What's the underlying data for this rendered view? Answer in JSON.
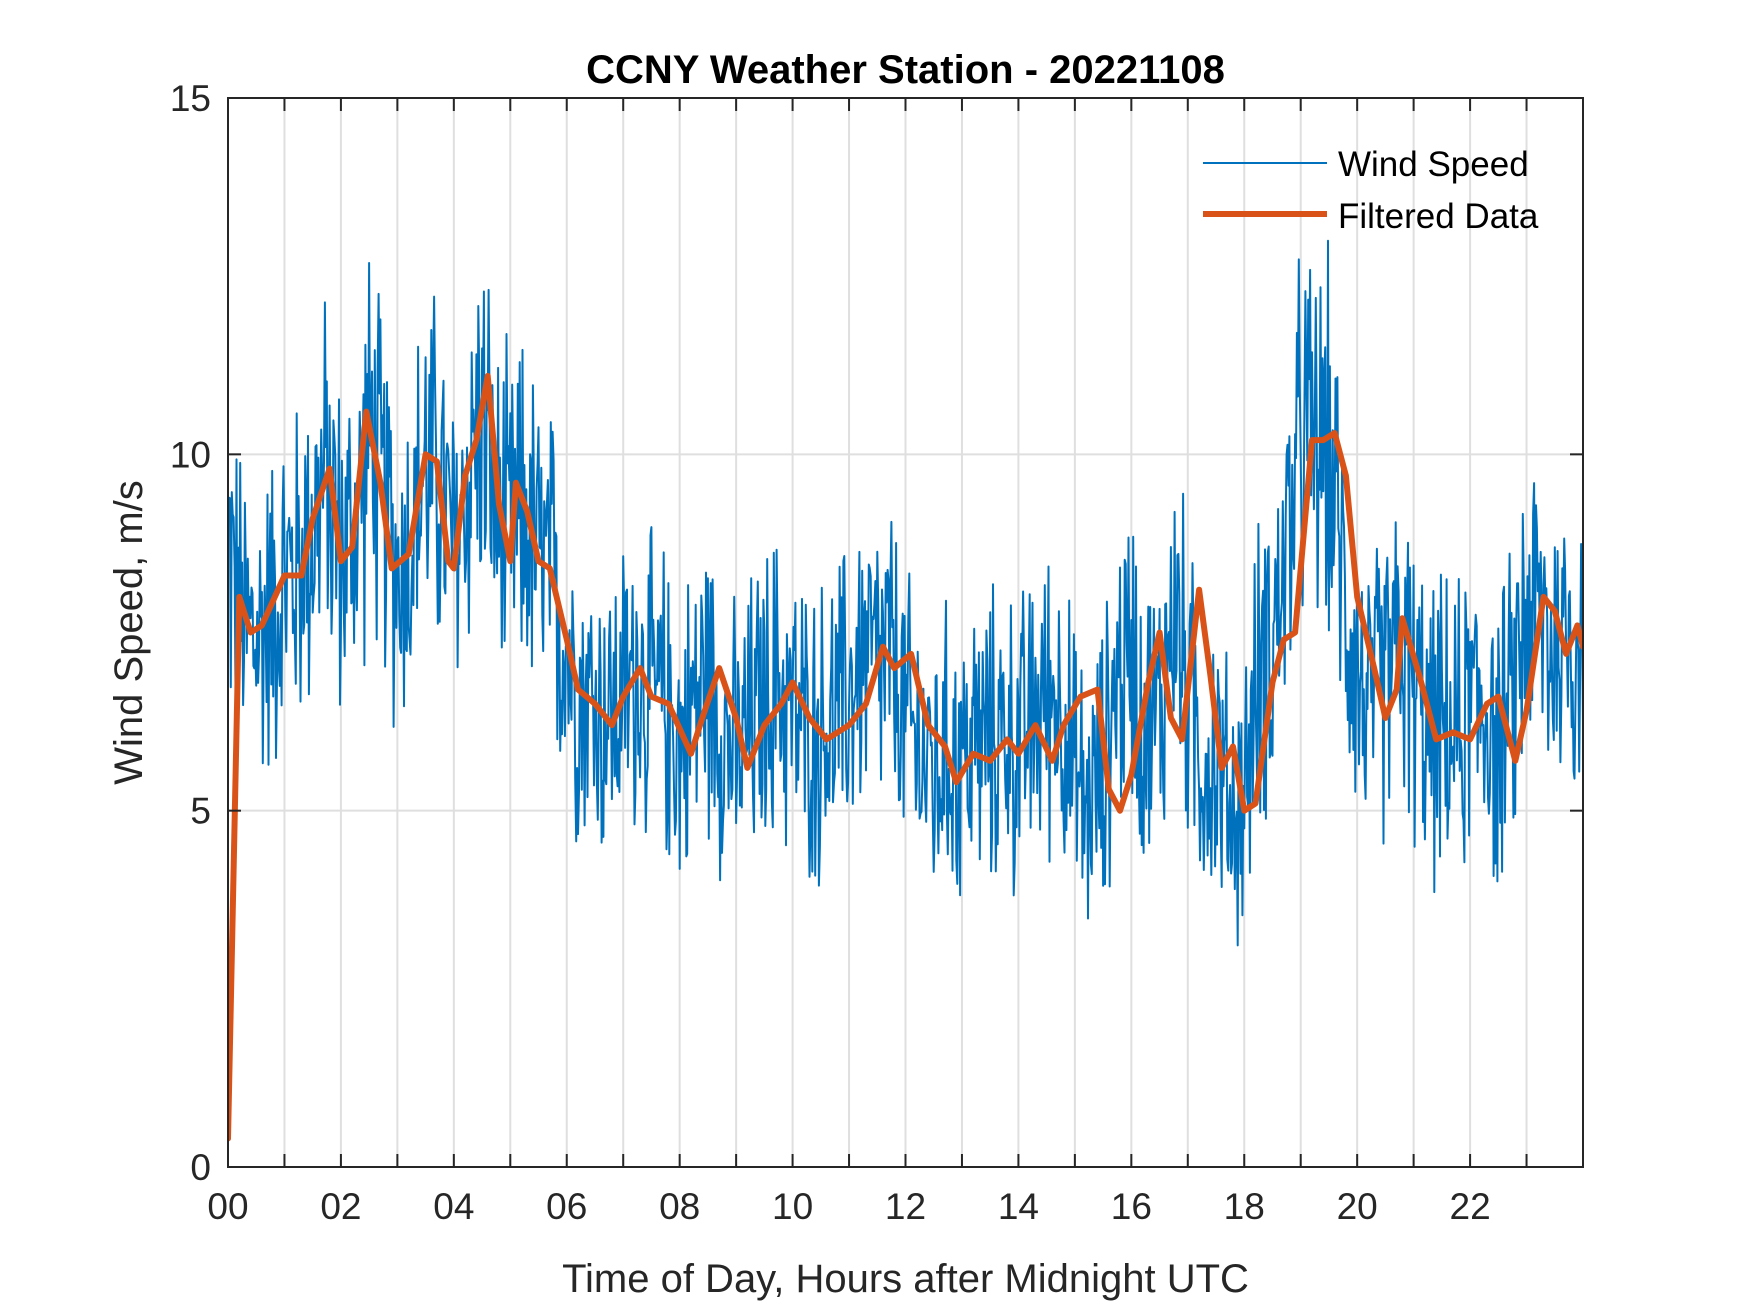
{
  "chart_data": {
    "type": "line",
    "title": "CCNY Weather Station - 20221108",
    "xlabel": "Time of Day, Hours after Midnight UTC",
    "ylabel": "Wind Speed, m/s",
    "xlim": [
      0,
      24
    ],
    "ylim": [
      0,
      15
    ],
    "x_ticks": [
      0,
      2,
      4,
      6,
      8,
      10,
      12,
      14,
      16,
      18,
      20,
      22
    ],
    "x_tick_labels": [
      "00",
      "02",
      "04",
      "06",
      "08",
      "10",
      "12",
      "14",
      "16",
      "18",
      "20",
      "22"
    ],
    "x_minor_ticks_hourly": true,
    "y_ticks": [
      0,
      5,
      10,
      15
    ],
    "y_tick_labels": [
      "0",
      "5",
      "10",
      "15"
    ],
    "grid": true,
    "legend_position": "top-right",
    "colors": {
      "wind_speed": "#0072BD",
      "filtered": "#D95319",
      "axis": "#262626",
      "grid": "#DFDFDF"
    },
    "series": [
      {
        "name": "Wind Speed",
        "style": "thin",
        "x": [
          0,
          0.25,
          0.5,
          0.75,
          1,
          1.25,
          1.5,
          1.75,
          2,
          2.25,
          2.5,
          2.75,
          3,
          3.25,
          3.5,
          3.75,
          4,
          4.25,
          4.5,
          4.75,
          5,
          5.25,
          5.5,
          5.75,
          6,
          6.25,
          6.5,
          6.75,
          7,
          7.25,
          7.5,
          7.75,
          8,
          8.25,
          8.5,
          8.75,
          9,
          9.25,
          9.5,
          9.75,
          10,
          10.25,
          10.5,
          10.75,
          11,
          11.25,
          11.5,
          11.75,
          12,
          12.25,
          12.5,
          12.75,
          13,
          13.25,
          13.5,
          13.75,
          14,
          14.25,
          14.5,
          14.75,
          15,
          15.25,
          15.5,
          15.75,
          16,
          16.25,
          16.5,
          16.75,
          17,
          17.25,
          17.5,
          17.75,
          18,
          18.25,
          18.5,
          18.75,
          19,
          19.25,
          19.5,
          19.75,
          20,
          20.25,
          20.5,
          20.75,
          21,
          21.25,
          21.5,
          21.75,
          22,
          22.25,
          22.5,
          22.75,
          23,
          23.25,
          23.5,
          23.75,
          24
        ],
        "values": [
          8.7,
          7.6,
          7.4,
          7.8,
          8.2,
          8.4,
          9.0,
          9.7,
          8.6,
          8.9,
          10.3,
          9.4,
          8.4,
          8.8,
          9.9,
          9.6,
          8.5,
          9.7,
          10.6,
          9.1,
          8.8,
          9.2,
          8.5,
          8.2,
          7.3,
          6.7,
          6.5,
          6.3,
          6.6,
          7.0,
          6.6,
          6.5,
          5.9,
          6.5,
          6.9,
          6.2,
          5.7,
          6.2,
          6.5,
          6.8,
          6.4,
          6.1,
          6.1,
          6.3,
          6.6,
          7.2,
          7.0,
          7.1,
          6.2,
          5.9,
          5.5,
          5.8,
          5.7,
          6.0,
          5.9,
          6.2,
          5.8,
          6.3,
          6.6,
          6.6,
          5.4,
          5.0,
          5.6,
          6.8,
          7.3,
          6.2,
          6.3,
          8.0,
          6.7,
          5.7,
          5.8,
          5.0,
          5.2,
          6.9,
          7.4,
          8.6,
          10.2,
          10.2,
          10.1,
          8.2,
          7.0,
          6.3,
          6.9,
          7.3,
          6.7,
          6.0,
          6.1,
          6.0,
          6.4,
          6.6,
          5.8,
          6.5,
          7.9,
          7.7,
          7.3,
          7.5,
          7.3
        ],
        "range_min": 2.7,
        "range_max": 14.5
      },
      {
        "name": "Filtered Data",
        "style": "thick",
        "x": [
          0,
          0.2,
          0.4,
          0.6,
          1.0,
          1.3,
          1.5,
          1.8,
          2.0,
          2.2,
          2.45,
          2.7,
          2.9,
          3.2,
          3.5,
          3.7,
          3.9,
          4.0,
          4.2,
          4.4,
          4.6,
          4.8,
          5.0,
          5.1,
          5.3,
          5.5,
          5.7,
          6.0,
          6.2,
          6.5,
          6.8,
          7.0,
          7.3,
          7.5,
          7.8,
          8.2,
          8.4,
          8.7,
          9.0,
          9.2,
          9.5,
          9.8,
          10.0,
          10.3,
          10.6,
          11.0,
          11.3,
          11.6,
          11.8,
          12.1,
          12.4,
          12.7,
          12.9,
          13.2,
          13.5,
          13.8,
          14.0,
          14.3,
          14.6,
          14.8,
          15.1,
          15.4,
          15.6,
          15.8,
          16.0,
          16.3,
          16.5,
          16.7,
          16.9,
          17.2,
          17.4,
          17.6,
          17.8,
          18.0,
          18.2,
          18.5,
          18.7,
          18.9,
          19.2,
          19.4,
          19.6,
          19.8,
          20.0,
          20.3,
          20.5,
          20.7,
          20.8,
          21.1,
          21.4,
          21.7,
          22.0,
          22.3,
          22.5,
          22.8,
          23.0,
          23.3,
          23.5,
          23.7,
          23.9,
          24.0
        ],
        "values": [
          0.4,
          8.0,
          7.5,
          7.6,
          8.3,
          8.3,
          9.1,
          9.8,
          8.5,
          8.7,
          10.6,
          9.6,
          8.4,
          8.6,
          10.0,
          9.9,
          8.5,
          8.4,
          9.7,
          10.2,
          11.1,
          9.3,
          8.5,
          9.6,
          9.2,
          8.5,
          8.4,
          7.4,
          6.7,
          6.5,
          6.2,
          6.6,
          7.0,
          6.6,
          6.5,
          5.8,
          6.3,
          7.0,
          6.3,
          5.6,
          6.2,
          6.5,
          6.8,
          6.3,
          6.0,
          6.2,
          6.5,
          7.3,
          7.0,
          7.2,
          6.2,
          5.9,
          5.4,
          5.8,
          5.7,
          6.0,
          5.8,
          6.2,
          5.7,
          6.2,
          6.6,
          6.7,
          5.3,
          5.0,
          5.5,
          6.8,
          7.5,
          6.3,
          6.0,
          8.1,
          6.9,
          5.6,
          5.9,
          5.0,
          5.1,
          6.8,
          7.4,
          7.5,
          10.2,
          10.2,
          10.3,
          9.7,
          8.0,
          7.0,
          6.3,
          6.7,
          7.7,
          6.9,
          6.0,
          6.1,
          6.0,
          6.5,
          6.6,
          5.7,
          6.4,
          8.0,
          7.8,
          7.2,
          7.6,
          7.3
        ]
      }
    ]
  }
}
